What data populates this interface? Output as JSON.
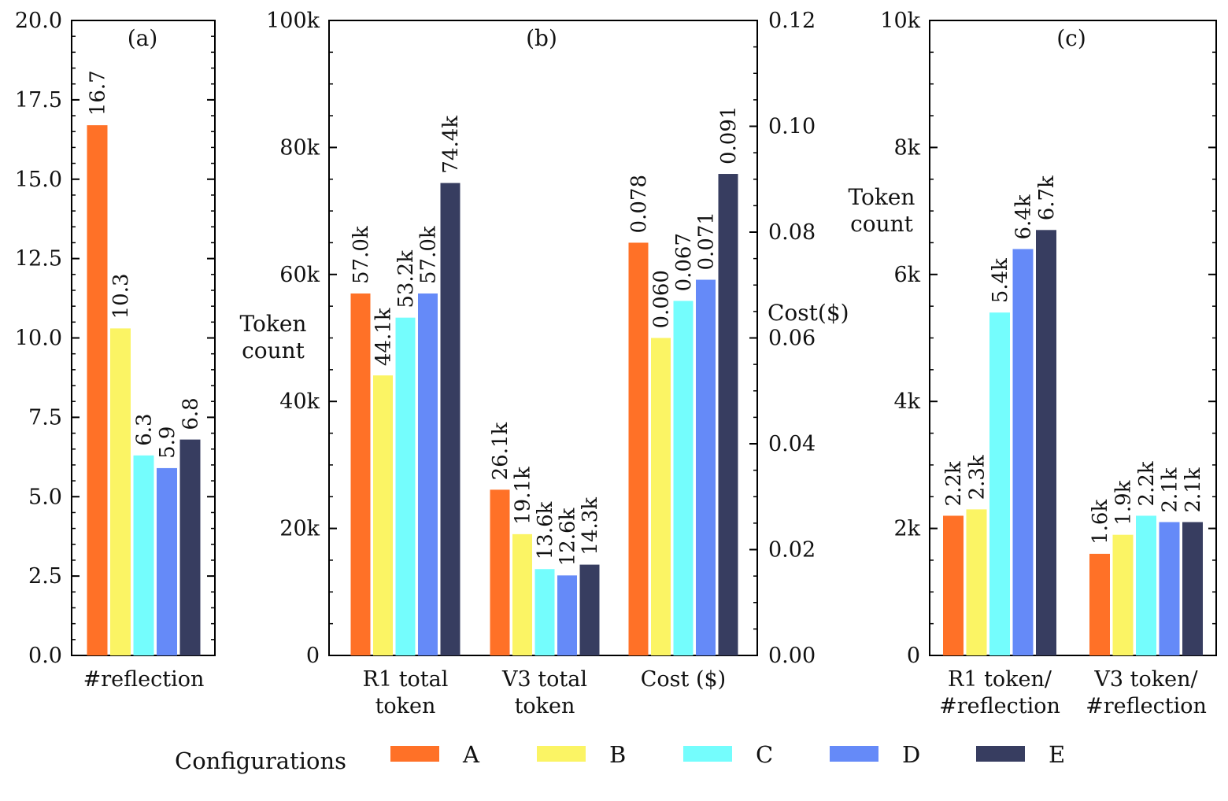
{
  "colors": {
    "A": "#ff7127",
    "B": "#fbf464",
    "C": "#74fdfd",
    "D": "#658af8",
    "E": "#373d60"
  },
  "chart_data": [
    {
      "panel": "(a)",
      "type": "bar",
      "categories": [
        "#reflection"
      ],
      "series": [
        {
          "name": "A",
          "values": [
            16.7
          ],
          "labels": [
            "16.7"
          ]
        },
        {
          "name": "B",
          "values": [
            10.3
          ],
          "labels": [
            "10.3"
          ]
        },
        {
          "name": "C",
          "values": [
            6.3
          ],
          "labels": [
            "6.3"
          ]
        },
        {
          "name": "D",
          "values": [
            5.9
          ],
          "labels": [
            "5.9"
          ]
        },
        {
          "name": "E",
          "values": [
            6.8
          ],
          "labels": [
            "6.8"
          ]
        }
      ],
      "ylim": [
        0,
        20
      ],
      "yticks": [
        0,
        2.5,
        5,
        7.5,
        10,
        12.5,
        15,
        17.5,
        20
      ],
      "yticklabels": [
        "0.0",
        "2.5",
        "5.0",
        "7.5",
        "10.0",
        "12.5",
        "15.0",
        "17.5",
        "20.0"
      ],
      "ylabel": ""
    },
    {
      "panel": "(b)",
      "type": "bar",
      "categories": [
        [
          "R1 total",
          "token"
        ],
        [
          "V3 total",
          "token"
        ],
        [
          "Cost ($)"
        ]
      ],
      "series": [
        {
          "name": "A",
          "values": [
            57000,
            26100,
            0.078
          ],
          "labels": [
            "57.0k",
            "26.1k",
            "0.078"
          ]
        },
        {
          "name": "B",
          "values": [
            44100,
            19100,
            0.06
          ],
          "labels": [
            "44.1k",
            "19.1k",
            "0.060"
          ]
        },
        {
          "name": "C",
          "values": [
            53200,
            13600,
            0.067
          ],
          "labels": [
            "53.2k",
            "13.6k",
            "0.067"
          ]
        },
        {
          "name": "D",
          "values": [
            57000,
            12600,
            0.071
          ],
          "labels": [
            "57.0k",
            "12.6k",
            "0.071"
          ]
        },
        {
          "name": "E",
          "values": [
            74400,
            14300,
            0.091
          ],
          "labels": [
            "74.4k",
            "14.3k",
            "0.091"
          ]
        }
      ],
      "secondary_axis_categories": [
        2
      ],
      "ylim": [
        0,
        100000
      ],
      "yticks": [
        0,
        20000,
        40000,
        60000,
        80000,
        100000
      ],
      "yticklabels": [
        "0",
        "20k",
        "40k",
        "60k",
        "80k",
        "100k"
      ],
      "ylabel": [
        "Token",
        "count"
      ],
      "y2lim": [
        0,
        0.12
      ],
      "y2ticks": [
        0,
        0.02,
        0.04,
        0.06,
        0.08,
        0.1,
        0.12
      ],
      "y2ticklabels": [
        "0.00",
        "0.02",
        "0.04",
        "0.06",
        "0.08",
        "0.10",
        "0.12"
      ],
      "y2label": "Cost($)"
    },
    {
      "panel": "(c)",
      "type": "bar",
      "categories": [
        [
          "R1 token/",
          "#reflection"
        ],
        [
          "V3 token/",
          "#reflection"
        ]
      ],
      "series": [
        {
          "name": "A",
          "values": [
            2200,
            1600
          ],
          "labels": [
            "2.2k",
            "1.6k"
          ]
        },
        {
          "name": "B",
          "values": [
            2300,
            1900
          ],
          "labels": [
            "2.3k",
            "1.9k"
          ]
        },
        {
          "name": "C",
          "values": [
            5400,
            2200
          ],
          "labels": [
            "5.4k",
            "2.2k"
          ]
        },
        {
          "name": "D",
          "values": [
            6400,
            2100
          ],
          "labels": [
            "6.4k",
            "2.1k"
          ]
        },
        {
          "name": "E",
          "values": [
            6700,
            2100
          ],
          "labels": [
            "6.7k",
            "2.1k"
          ]
        }
      ],
      "ylim": [
        0,
        10000
      ],
      "yticks": [
        0,
        2000,
        4000,
        6000,
        8000,
        10000
      ],
      "yticklabels": [
        "0",
        "2k",
        "4k",
        "6k",
        "8k",
        "10k"
      ],
      "ylabel": [
        "Token",
        "count"
      ]
    }
  ],
  "legend": {
    "title": "Configurations",
    "entries": [
      "A",
      "B",
      "C",
      "D",
      "E"
    ],
    "position": "bottom-center"
  }
}
